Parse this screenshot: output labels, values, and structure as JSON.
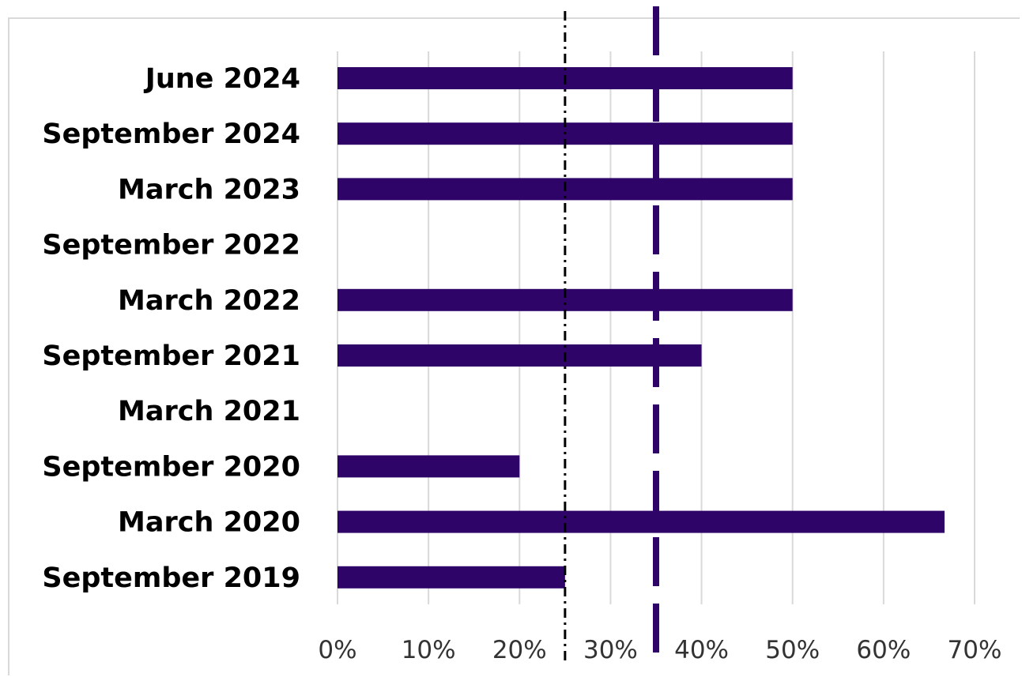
{
  "chart_data": {
    "type": "bar",
    "orientation": "horizontal",
    "categories": [
      "June 2024",
      "September 2024",
      "March 2023",
      "September 2022",
      "March 2022",
      "September 2021",
      "March 2021",
      "September 2020",
      "March 2020",
      "September 2019"
    ],
    "values": [
      50,
      50,
      50,
      null,
      50,
      40,
      null,
      20,
      66.7,
      25
    ],
    "xlim": [
      0,
      70
    ],
    "x_ticks": [
      "0%",
      "10%",
      "20%",
      "30%",
      "40%",
      "50%",
      "60%",
      "70%"
    ],
    "x_tick_values": [
      0,
      10,
      20,
      30,
      40,
      50,
      60,
      70
    ],
    "grid": "vertical",
    "bar_color": "#2e0468",
    "reference_lines": [
      {
        "value": 25,
        "style": "dash-dot",
        "color": "#000000"
      },
      {
        "value": 35,
        "style": "long-dash",
        "color": "#2e0468"
      }
    ],
    "title": "",
    "xlabel": "",
    "ylabel": ""
  }
}
